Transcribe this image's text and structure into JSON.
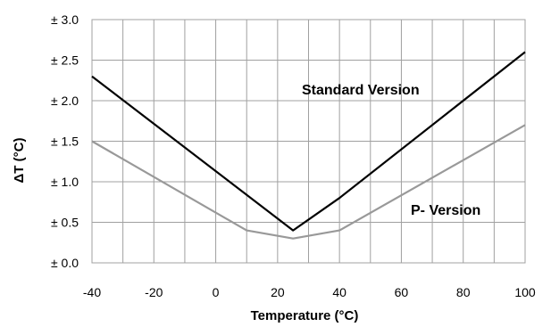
{
  "chart_data": {
    "type": "line",
    "title": "",
    "xlabel": "Temperature (°C)",
    "ylabel": "ΔT (°C)",
    "xlim": [
      -40,
      100
    ],
    "ylim": [
      0,
      3.0
    ],
    "x_ticks": [
      -40,
      -20,
      0,
      20,
      40,
      60,
      80,
      100
    ],
    "x_tick_labels": [
      "-40",
      "-20",
      "0",
      "20",
      "40",
      "60",
      "80",
      "100"
    ],
    "y_ticks": [
      0,
      0.5,
      1.0,
      1.5,
      2.0,
      2.5,
      3.0
    ],
    "y_tick_labels": [
      "± 0.0",
      "± 0.5",
      "± 1.0",
      "± 1.5",
      "± 2.0",
      "± 2.5",
      "± 3.0"
    ],
    "grid": true,
    "legend": "none (series labelled directly on plot)",
    "series": [
      {
        "name": "Standard Version",
        "color": "#000000",
        "x": [
          -40,
          25,
          40,
          100
        ],
        "y": [
          2.3,
          0.4,
          0.8,
          2.6
        ]
      },
      {
        "name": "P- Version",
        "color": "#999999",
        "x": [
          -40,
          10,
          25,
          40,
          100
        ],
        "y": [
          1.5,
          0.4,
          0.3,
          0.4,
          1.7
        ]
      }
    ]
  }
}
